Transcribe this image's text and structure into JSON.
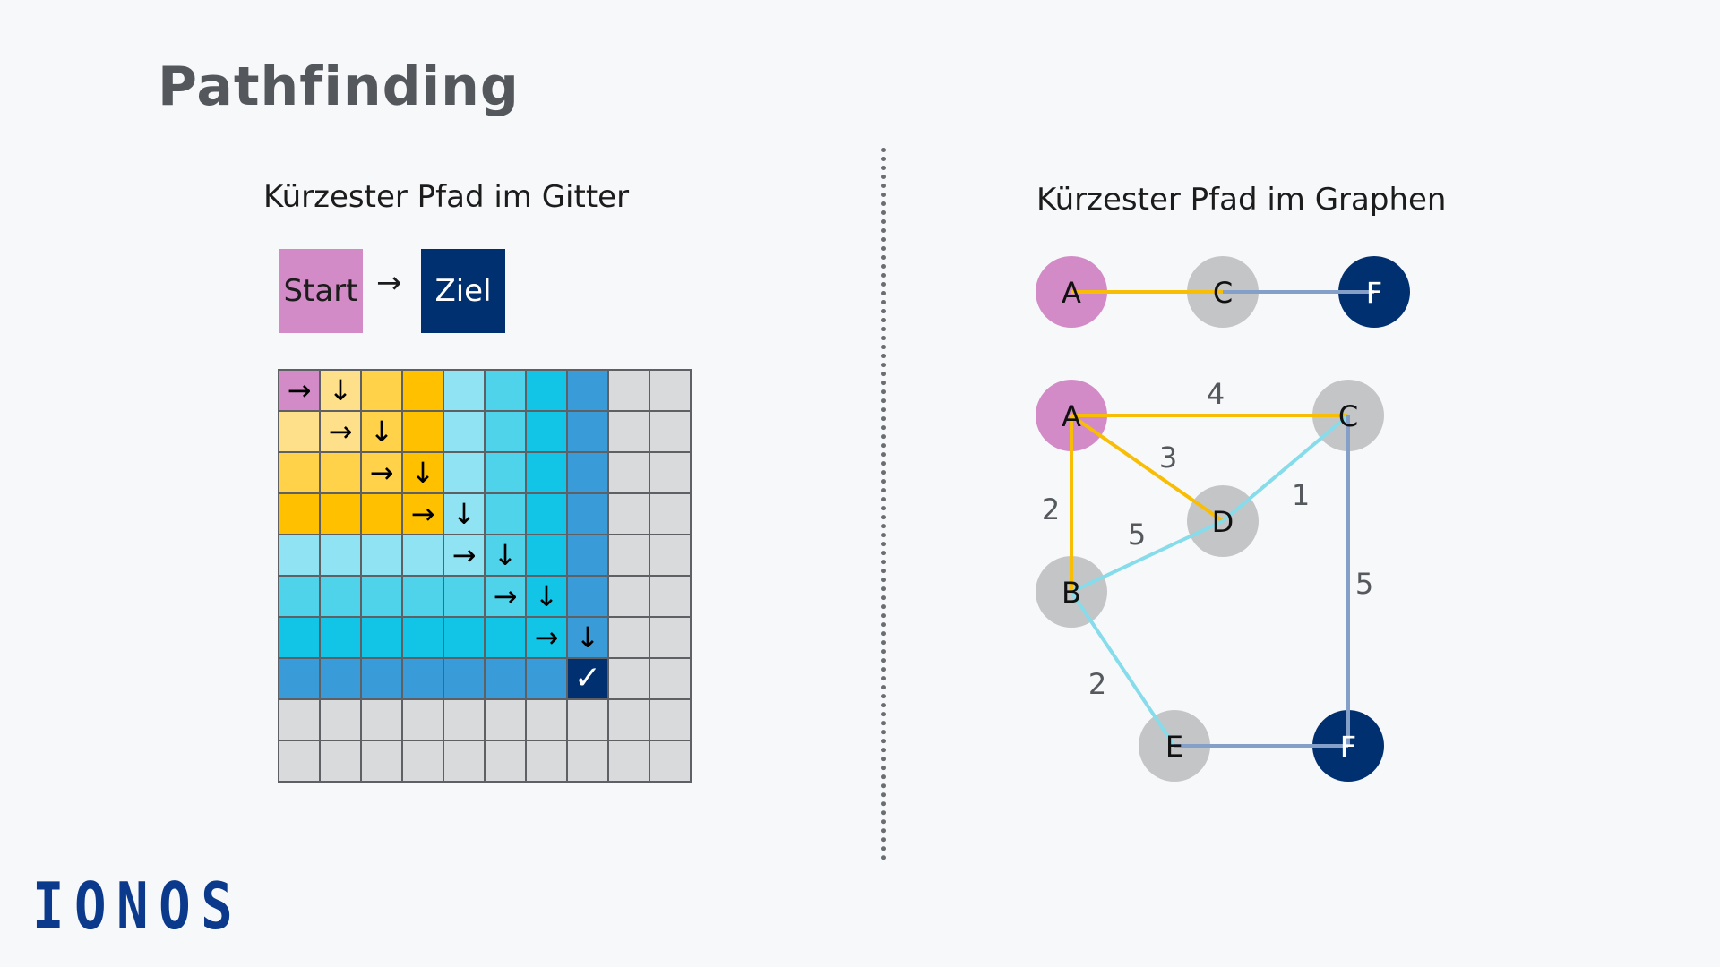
{
  "title": "Pathfinding",
  "grid_section": {
    "subtitle": "Kürzester Pfad im Gitter",
    "legend": {
      "start": "Start",
      "arrow": "→",
      "goal": "Ziel"
    },
    "size": 10,
    "ring_colors": [
      "#d38bc7",
      "#ffe08a",
      "#ffd24a",
      "#ffc000",
      "#8fe3f2",
      "#4fd3ea",
      "#12c5e6",
      "#3a9bd9"
    ],
    "unvisited_color": "#d9dadc",
    "goal_color": "#003070",
    "goal_cell": [
      7,
      7
    ],
    "goal_mark": "✓",
    "path_steps": [
      {
        "cell": [
          0,
          0
        ],
        "arrow": "→"
      },
      {
        "cell": [
          0,
          1
        ],
        "arrow": "↓"
      },
      {
        "cell": [
          1,
          1
        ],
        "arrow": "→"
      },
      {
        "cell": [
          1,
          2
        ],
        "arrow": "↓"
      },
      {
        "cell": [
          2,
          2
        ],
        "arrow": "→"
      },
      {
        "cell": [
          2,
          3
        ],
        "arrow": "↓"
      },
      {
        "cell": [
          3,
          3
        ],
        "arrow": "→"
      },
      {
        "cell": [
          3,
          4
        ],
        "arrow": "↓"
      },
      {
        "cell": [
          4,
          4
        ],
        "arrow": "→"
      },
      {
        "cell": [
          4,
          5
        ],
        "arrow": "↓"
      },
      {
        "cell": [
          5,
          5
        ],
        "arrow": "→"
      },
      {
        "cell": [
          5,
          6
        ],
        "arrow": "↓"
      },
      {
        "cell": [
          6,
          6
        ],
        "arrow": "→"
      },
      {
        "cell": [
          6,
          7
        ],
        "arrow": "↓"
      }
    ]
  },
  "graph_section": {
    "subtitle": "Kürzester Pfad im Graphen",
    "colors": {
      "start": "#d38bc7",
      "goal": "#003070",
      "node": "#c4c5c7",
      "edge_yellow": "#f8bd05",
      "edge_cyan": "#86dcea",
      "edge_blue": "#84a0c8"
    },
    "path_chain": [
      {
        "node": "A",
        "type": "start"
      },
      {
        "node": "C",
        "type": "node"
      },
      {
        "node": "F",
        "type": "goal"
      }
    ],
    "path_chain_edges": [
      {
        "from": "A",
        "to": "C",
        "color": "edge_yellow"
      },
      {
        "from": "C",
        "to": "F",
        "color": "edge_blue"
      }
    ],
    "nodes": [
      {
        "id": "A",
        "type": "start"
      },
      {
        "id": "B",
        "type": "node"
      },
      {
        "id": "C",
        "type": "node"
      },
      {
        "id": "D",
        "type": "node"
      },
      {
        "id": "E",
        "type": "node"
      },
      {
        "id": "F",
        "type": "goal"
      }
    ],
    "edges": [
      {
        "from": "A",
        "to": "C",
        "weight": "4",
        "color": "edge_yellow"
      },
      {
        "from": "A",
        "to": "D",
        "weight": "3",
        "color": "edge_yellow"
      },
      {
        "from": "A",
        "to": "B",
        "weight": "2",
        "color": "edge_yellow"
      },
      {
        "from": "B",
        "to": "D",
        "weight": "5",
        "color": "edge_cyan"
      },
      {
        "from": "D",
        "to": "C",
        "weight": "1",
        "color": "edge_cyan"
      },
      {
        "from": "B",
        "to": "E",
        "weight": "2",
        "color": "edge_cyan"
      },
      {
        "from": "C",
        "to": "F",
        "weight": "5",
        "color": "edge_blue"
      },
      {
        "from": "E",
        "to": "F",
        "weight": "",
        "color": "edge_blue"
      }
    ]
  },
  "logo": "IONOS"
}
